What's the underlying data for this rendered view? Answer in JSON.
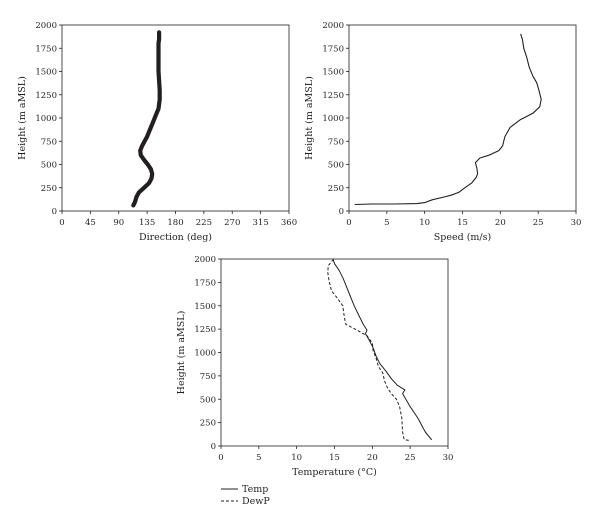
{
  "chart_data": [
    {
      "type": "line",
      "xlabel": "Direction (deg)",
      "ylabel": "Height (m aMSL)",
      "xlim": [
        0,
        360
      ],
      "ylim": [
        0,
        2000
      ],
      "xticks": [
        0,
        45,
        90,
        135,
        180,
        225,
        270,
        315,
        360
      ],
      "yticks": [
        0,
        250,
        500,
        750,
        1000,
        1250,
        1500,
        1750,
        2000
      ],
      "series": [
        {
          "line_style": "thick-solid",
          "points": [
            [
              113,
              60
            ],
            [
              116,
              100
            ],
            [
              118,
              150
            ],
            [
              122,
              200
            ],
            [
              130,
              250
            ],
            [
              138,
              300
            ],
            [
              142,
              350
            ],
            [
              143,
              400
            ],
            [
              141,
              450
            ],
            [
              136,
              500
            ],
            [
              130,
              550
            ],
            [
              125,
              600
            ],
            [
              124,
              650
            ],
            [
              127,
              700
            ],
            [
              131,
              750
            ],
            [
              135,
              800
            ],
            [
              138,
              850
            ],
            [
              141,
              900
            ],
            [
              144,
              950
            ],
            [
              147,
              1000
            ],
            [
              150,
              1050
            ],
            [
              153,
              1100
            ],
            [
              154,
              1150
            ],
            [
              155,
              1200
            ],
            [
              155,
              1300
            ],
            [
              154,
              1400
            ],
            [
              153,
              1500
            ],
            [
              153,
              1600
            ],
            [
              153,
              1700
            ],
            [
              153,
              1800
            ],
            [
              154,
              1850
            ],
            [
              154,
              1920
            ]
          ]
        }
      ]
    },
    {
      "type": "line",
      "xlabel": "Speed (m/s)",
      "ylabel": "Height (m aMSL)",
      "xlim": [
        0,
        30
      ],
      "ylim": [
        0,
        2000
      ],
      "xticks": [
        0,
        5,
        10,
        15,
        20,
        25,
        30
      ],
      "yticks": [
        0,
        250,
        500,
        750,
        1000,
        1250,
        1500,
        1750,
        2000
      ],
      "series": [
        {
          "line_style": "thin-solid",
          "points": [
            [
              0.8,
              70
            ],
            [
              3,
              75
            ],
            [
              6,
              75
            ],
            [
              9,
              80
            ],
            [
              10,
              90
            ],
            [
              11,
              120
            ],
            [
              12.5,
              150
            ],
            [
              13.5,
              170
            ],
            [
              14.5,
              200
            ],
            [
              15.3,
              250
            ],
            [
              16.2,
              300
            ],
            [
              16.8,
              360
            ],
            [
              17,
              400
            ],
            [
              16.9,
              460
            ],
            [
              16.7,
              520
            ],
            [
              17.3,
              570
            ],
            [
              18.5,
              600
            ],
            [
              19.8,
              650
            ],
            [
              20.3,
              700
            ],
            [
              20.6,
              800
            ],
            [
              21.3,
              900
            ],
            [
              22.6,
              980
            ],
            [
              24.3,
              1050
            ],
            [
              25.2,
              1120
            ],
            [
              25.4,
              1200
            ],
            [
              25.1,
              1300
            ],
            [
              24.8,
              1380
            ],
            [
              24.3,
              1450
            ],
            [
              23.8,
              1550
            ],
            [
              23.5,
              1650
            ],
            [
              23.1,
              1750
            ],
            [
              22.9,
              1850
            ],
            [
              22.7,
              1900
            ]
          ]
        }
      ]
    },
    {
      "type": "line",
      "xlabel": "Temperature (°C)",
      "ylabel": "Height (m aMSL)",
      "xlim": [
        0,
        30
      ],
      "ylim": [
        0,
        2000
      ],
      "xticks": [
        0,
        5,
        10,
        15,
        20,
        25,
        30
      ],
      "yticks": [
        0,
        250,
        500,
        750,
        1000,
        1250,
        1500,
        1750,
        2000
      ],
      "legend_position": "below",
      "series": [
        {
          "name": "Temp",
          "line_style": "solid",
          "points": [
            [
              27.8,
              70
            ],
            [
              27,
              150
            ],
            [
              26,
              300
            ],
            [
              25,
              420
            ],
            [
              24,
              560
            ],
            [
              24.3,
              600
            ],
            [
              23.3,
              650
            ],
            [
              22.5,
              720
            ],
            [
              21.8,
              800
            ],
            [
              21,
              880
            ],
            [
              20.5,
              960
            ],
            [
              20.1,
              1050
            ],
            [
              19.6,
              1130
            ],
            [
              19.1,
              1200
            ],
            [
              19.3,
              1240
            ],
            [
              18.8,
              1300
            ],
            [
              18.2,
              1400
            ],
            [
              17.6,
              1500
            ],
            [
              17,
              1620
            ],
            [
              16.5,
              1720
            ],
            [
              16.1,
              1800
            ],
            [
              15.6,
              1880
            ],
            [
              15,
              1950
            ],
            [
              14.8,
              2000
            ]
          ]
        },
        {
          "name": "DewP",
          "line_style": "dashed",
          "points": [
            [
              24.8,
              60
            ],
            [
              24.2,
              70
            ],
            [
              24,
              150
            ],
            [
              23.9,
              300
            ],
            [
              23.6,
              420
            ],
            [
              23.2,
              500
            ],
            [
              22.5,
              560
            ],
            [
              22,
              620
            ],
            [
              21.6,
              700
            ],
            [
              21.4,
              780
            ],
            [
              20.8,
              850
            ],
            [
              20.5,
              940
            ],
            [
              20.1,
              1020
            ],
            [
              20,
              1100
            ],
            [
              19.3,
              1180
            ],
            [
              17.5,
              1260
            ],
            [
              16.5,
              1300
            ],
            [
              16.3,
              1380
            ],
            [
              16.1,
              1500
            ],
            [
              15.4,
              1580
            ],
            [
              14.6,
              1660
            ],
            [
              14.3,
              1760
            ],
            [
              14.1,
              1860
            ],
            [
              14.2,
              1930
            ],
            [
              14.8,
              1990
            ]
          ]
        }
      ]
    }
  ]
}
